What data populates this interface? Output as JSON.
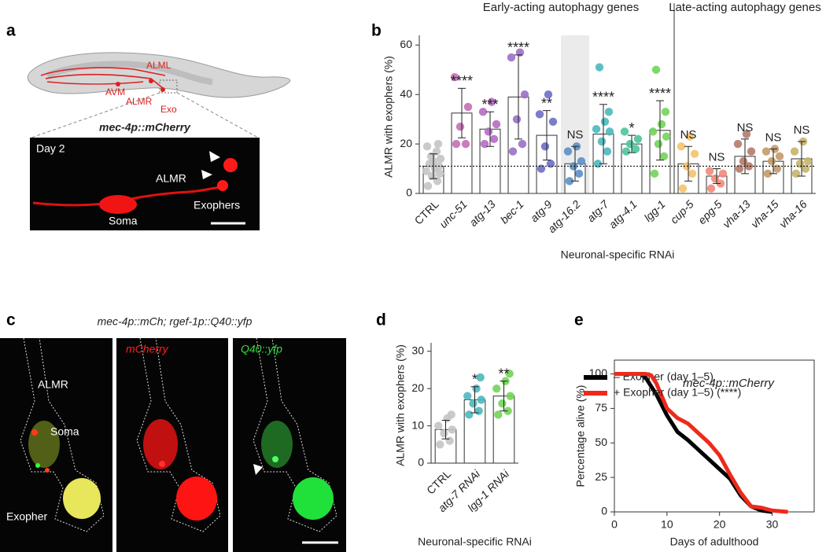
{
  "panel_labels": [
    "a",
    "b",
    "c",
    "d",
    "e"
  ],
  "panel_a": {
    "diagram_labels": [
      "ALML",
      "AVM",
      "ALMR",
      "Exo"
    ],
    "title": "mec-4p::mCherry",
    "image_labels": [
      "Day 2",
      "ALMR",
      "Soma",
      "Exophers"
    ]
  },
  "panel_c": {
    "title": "mec-4p::mCh; rgef-1p::Q40::yfp",
    "channel_labels": [
      "mCherry",
      "Q40::yfp"
    ],
    "image_labels": [
      "ALMR",
      "Soma",
      "Exopher"
    ]
  },
  "chart_data": [
    {
      "type": "bar",
      "categories": [
        "CTRL",
        "unc-51",
        "atg-13",
        "bec-1",
        "atg-9",
        "atg-16.2",
        "atg-7",
        "atg-4.1",
        "lgg-1",
        "cup-5",
        "epg-5",
        "vha-13",
        "vha-15",
        "vha-16"
      ],
      "values": [
        11,
        32.5,
        26,
        39,
        23.5,
        12,
        24,
        20,
        25.5,
        12,
        7,
        15,
        13,
        14
      ],
      "errors": [
        5,
        10,
        7,
        17,
        10,
        7,
        12,
        3.5,
        12,
        7,
        3,
        7,
        5,
        7
      ],
      "points": [
        [
          3,
          5,
          7,
          8,
          9,
          10,
          11,
          12,
          13,
          14,
          15,
          17,
          19,
          20
        ],
        [
          20,
          20,
          27,
          35,
          47
        ],
        [
          20,
          22,
          25,
          28,
          33,
          37
        ],
        [
          17,
          20,
          30,
          40,
          55,
          57
        ],
        [
          10,
          12,
          19,
          29,
          32,
          40
        ],
        [
          5,
          8,
          11,
          13,
          17,
          19
        ],
        [
          12,
          17,
          21,
          25,
          26,
          29,
          33,
          51
        ],
        [
          17,
          18,
          20,
          22,
          25
        ],
        [
          8,
          15,
          20,
          23,
          25,
          28,
          33,
          50
        ],
        [
          2,
          8,
          11,
          16,
          19,
          23
        ],
        [
          2,
          4,
          6,
          8,
          9
        ],
        [
          10,
          11,
          13,
          17,
          20,
          24
        ],
        [
          8,
          10,
          13,
          15,
          17,
          18
        ],
        [
          8,
          10,
          12,
          13,
          17,
          21
        ]
      ],
      "significance": [
        null,
        "****",
        "***",
        "****",
        "**",
        "NS",
        "****",
        "*",
        "****",
        "NS",
        "NS",
        "NS",
        "NS",
        "NS"
      ],
      "colors": [
        "#c4c4c4",
        "#c46fb5",
        "#b46cc4",
        "#9a70c8",
        "#6d6fc6",
        "#5b8fc6",
        "#4db8bd",
        "#4dc49a",
        "#73d45a",
        "#f5c26a",
        "#f08a7a",
        "#b57a6a",
        "#c49a6a",
        "#c4b46a"
      ],
      "groups": [
        {
          "label": "Early-acting autophagy genes",
          "first": "unc-51",
          "last": "lgg-1"
        },
        {
          "label": "Late-acting autophagy genes",
          "first": "cup-5",
          "last": "vha-16"
        }
      ],
      "highlight": "atg-16.2",
      "reference_line": true,
      "ylabel": "ALMR with exophers (%)",
      "xlabel": "Neuronal-specific RNAi",
      "ylim": [
        0,
        62
      ],
      "yticks": [
        0,
        20,
        40,
        60
      ]
    },
    {
      "type": "bar",
      "categories": [
        "CTRL",
        "atg-7 RNAi",
        "lgg-1 RNAi"
      ],
      "values": [
        9,
        17,
        18
      ],
      "errors": [
        2.5,
        3.5,
        4
      ],
      "points": [
        [
          5,
          6,
          8,
          9,
          10,
          12,
          13
        ],
        [
          13,
          14,
          16,
          17,
          18,
          20,
          23
        ],
        [
          13,
          14,
          16,
          18,
          20,
          22,
          24
        ]
      ],
      "significance": [
        null,
        "*",
        "**"
      ],
      "colors": [
        "#c4c4c4",
        "#4db8bd",
        "#73d45a"
      ],
      "ylabel": "ALMR with exophers (%)",
      "xlabel": "Neuronal-specific RNAi",
      "ylim": [
        0,
        31
      ],
      "yticks": [
        0,
        10,
        20,
        30
      ]
    },
    {
      "type": "line",
      "annotation": "mec-4p::mCherry",
      "series": [
        {
          "name": "– Exopher (day 1–5)",
          "color": "#000000",
          "x": [
            0,
            5,
            6,
            8,
            10,
            12,
            14,
            16,
            18,
            20,
            22,
            24,
            26,
            28,
            30
          ],
          "values": [
            100,
            100,
            97,
            85,
            70,
            58,
            52,
            45,
            38,
            31,
            24,
            12,
            4,
            1,
            0
          ]
        },
        {
          "name": "+ Exopher (day 1–5) (****)",
          "color": "#ee2a1b",
          "x": [
            0,
            6,
            7,
            8,
            10,
            12,
            14,
            16,
            18,
            20,
            22,
            24,
            26,
            28,
            30,
            33
          ],
          "values": [
            100,
            100,
            99,
            93,
            75,
            68,
            64,
            57,
            50,
            41,
            27,
            14,
            4,
            3,
            1,
            0
          ]
        }
      ],
      "xlabel": "Days of adulthood",
      "ylabel": "Percentage alive (%)",
      "xlim": [
        0,
        38
      ],
      "xticks": [
        0,
        10,
        20,
        30
      ],
      "ylim": [
        0,
        110
      ],
      "yticks": [
        0,
        25,
        50,
        75,
        100
      ]
    }
  ]
}
